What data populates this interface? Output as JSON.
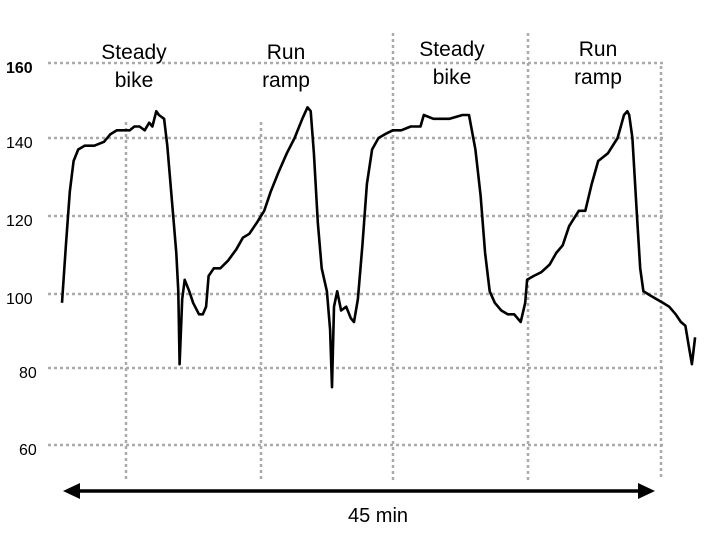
{
  "chart_data": {
    "type": "line",
    "title": "",
    "xlabel": "",
    "ylabel": "",
    "y_ticks": [
      "160",
      "140",
      "120",
      "100",
      "80",
      "60"
    ],
    "ylim": [
      60,
      160
    ],
    "grid": "dotted",
    "segments": [
      {
        "line1": "Steady",
        "line2": "bike"
      },
      {
        "line1": "Run",
        "line2": "ramp"
      },
      {
        "line1": "Steady",
        "line2": "bike"
      },
      {
        "line1": "Run",
        "line2": "ramp"
      }
    ],
    "duration_label": "45 min",
    "line_color": "#000000",
    "grid_color": "#aaaaaa",
    "series": [
      {
        "values": [
          [
            0.0,
            97
          ],
          [
            0.006,
            112
          ],
          [
            0.012,
            126
          ],
          [
            0.018,
            134
          ],
          [
            0.025,
            137
          ],
          [
            0.035,
            138
          ],
          [
            0.05,
            138
          ],
          [
            0.065,
            139
          ],
          [
            0.075,
            141
          ],
          [
            0.085,
            142
          ],
          [
            0.095,
            142
          ],
          [
            0.105,
            142
          ],
          [
            0.112,
            143
          ],
          [
            0.12,
            143
          ],
          [
            0.128,
            142
          ],
          [
            0.135,
            144
          ],
          [
            0.14,
            143
          ],
          [
            0.146,
            147
          ],
          [
            0.15,
            146
          ],
          [
            0.158,
            145
          ],
          [
            0.163,
            138
          ],
          [
            0.172,
            120
          ],
          [
            0.177,
            110
          ],
          [
            0.18,
            100
          ],
          [
            0.182,
            81
          ],
          [
            0.186,
            98
          ],
          [
            0.19,
            103
          ],
          [
            0.197,
            100
          ],
          [
            0.203,
            97
          ],
          [
            0.212,
            94
          ],
          [
            0.218,
            94
          ],
          [
            0.223,
            96
          ],
          [
            0.227,
            104
          ],
          [
            0.235,
            106
          ],
          [
            0.245,
            106
          ],
          [
            0.257,
            108
          ],
          [
            0.27,
            111
          ],
          [
            0.28,
            114
          ],
          [
            0.29,
            115
          ],
          [
            0.302,
            118
          ],
          [
            0.313,
            121
          ],
          [
            0.323,
            126
          ],
          [
            0.335,
            131
          ],
          [
            0.348,
            136
          ],
          [
            0.36,
            140
          ],
          [
            0.372,
            145
          ],
          [
            0.38,
            148
          ],
          [
            0.385,
            147
          ],
          [
            0.39,
            136
          ],
          [
            0.396,
            118
          ],
          [
            0.402,
            106
          ],
          [
            0.41,
            100
          ],
          [
            0.415,
            90
          ],
          [
            0.418,
            75
          ],
          [
            0.421,
            96
          ],
          [
            0.426,
            100
          ],
          [
            0.432,
            95
          ],
          [
            0.44,
            96
          ],
          [
            0.447,
            93
          ],
          [
            0.452,
            92
          ],
          [
            0.458,
            98
          ],
          [
            0.465,
            112
          ],
          [
            0.472,
            128
          ],
          [
            0.48,
            137
          ],
          [
            0.49,
            140
          ],
          [
            0.5,
            141
          ],
          [
            0.512,
            142
          ],
          [
            0.525,
            142
          ],
          [
            0.54,
            143
          ],
          [
            0.555,
            143
          ],
          [
            0.56,
            146
          ],
          [
            0.575,
            145
          ],
          [
            0.6,
            145
          ],
          [
            0.62,
            146
          ],
          [
            0.63,
            146
          ],
          [
            0.64,
            137
          ],
          [
            0.648,
            125
          ],
          [
            0.655,
            110
          ],
          [
            0.662,
            100
          ],
          [
            0.67,
            97
          ],
          [
            0.68,
            95
          ],
          [
            0.69,
            94
          ],
          [
            0.7,
            94
          ],
          [
            0.71,
            92
          ],
          [
            0.717,
            97
          ],
          [
            0.72,
            103
          ],
          [
            0.73,
            104
          ],
          [
            0.742,
            105
          ],
          [
            0.755,
            107
          ],
          [
            0.765,
            110
          ],
          [
            0.775,
            112
          ],
          [
            0.785,
            117
          ],
          [
            0.8,
            121
          ],
          [
            0.81,
            121
          ],
          [
            0.82,
            128
          ],
          [
            0.83,
            134
          ],
          [
            0.845,
            136
          ],
          [
            0.86,
            140
          ],
          [
            0.87,
            146
          ],
          [
            0.875,
            147
          ],
          [
            0.878,
            146
          ],
          [
            0.883,
            140
          ],
          [
            0.89,
            120
          ],
          [
            0.895,
            106
          ],
          [
            0.9,
            100
          ],
          [
            0.91,
            99
          ],
          [
            0.92,
            98
          ],
          [
            0.93,
            97
          ],
          [
            0.94,
            96
          ],
          [
            0.95,
            94
          ],
          [
            0.958,
            92
          ],
          [
            0.965,
            91
          ],
          [
            0.97,
            86
          ],
          [
            0.975,
            81
          ],
          [
            0.98,
            88
          ]
        ]
      }
    ]
  }
}
